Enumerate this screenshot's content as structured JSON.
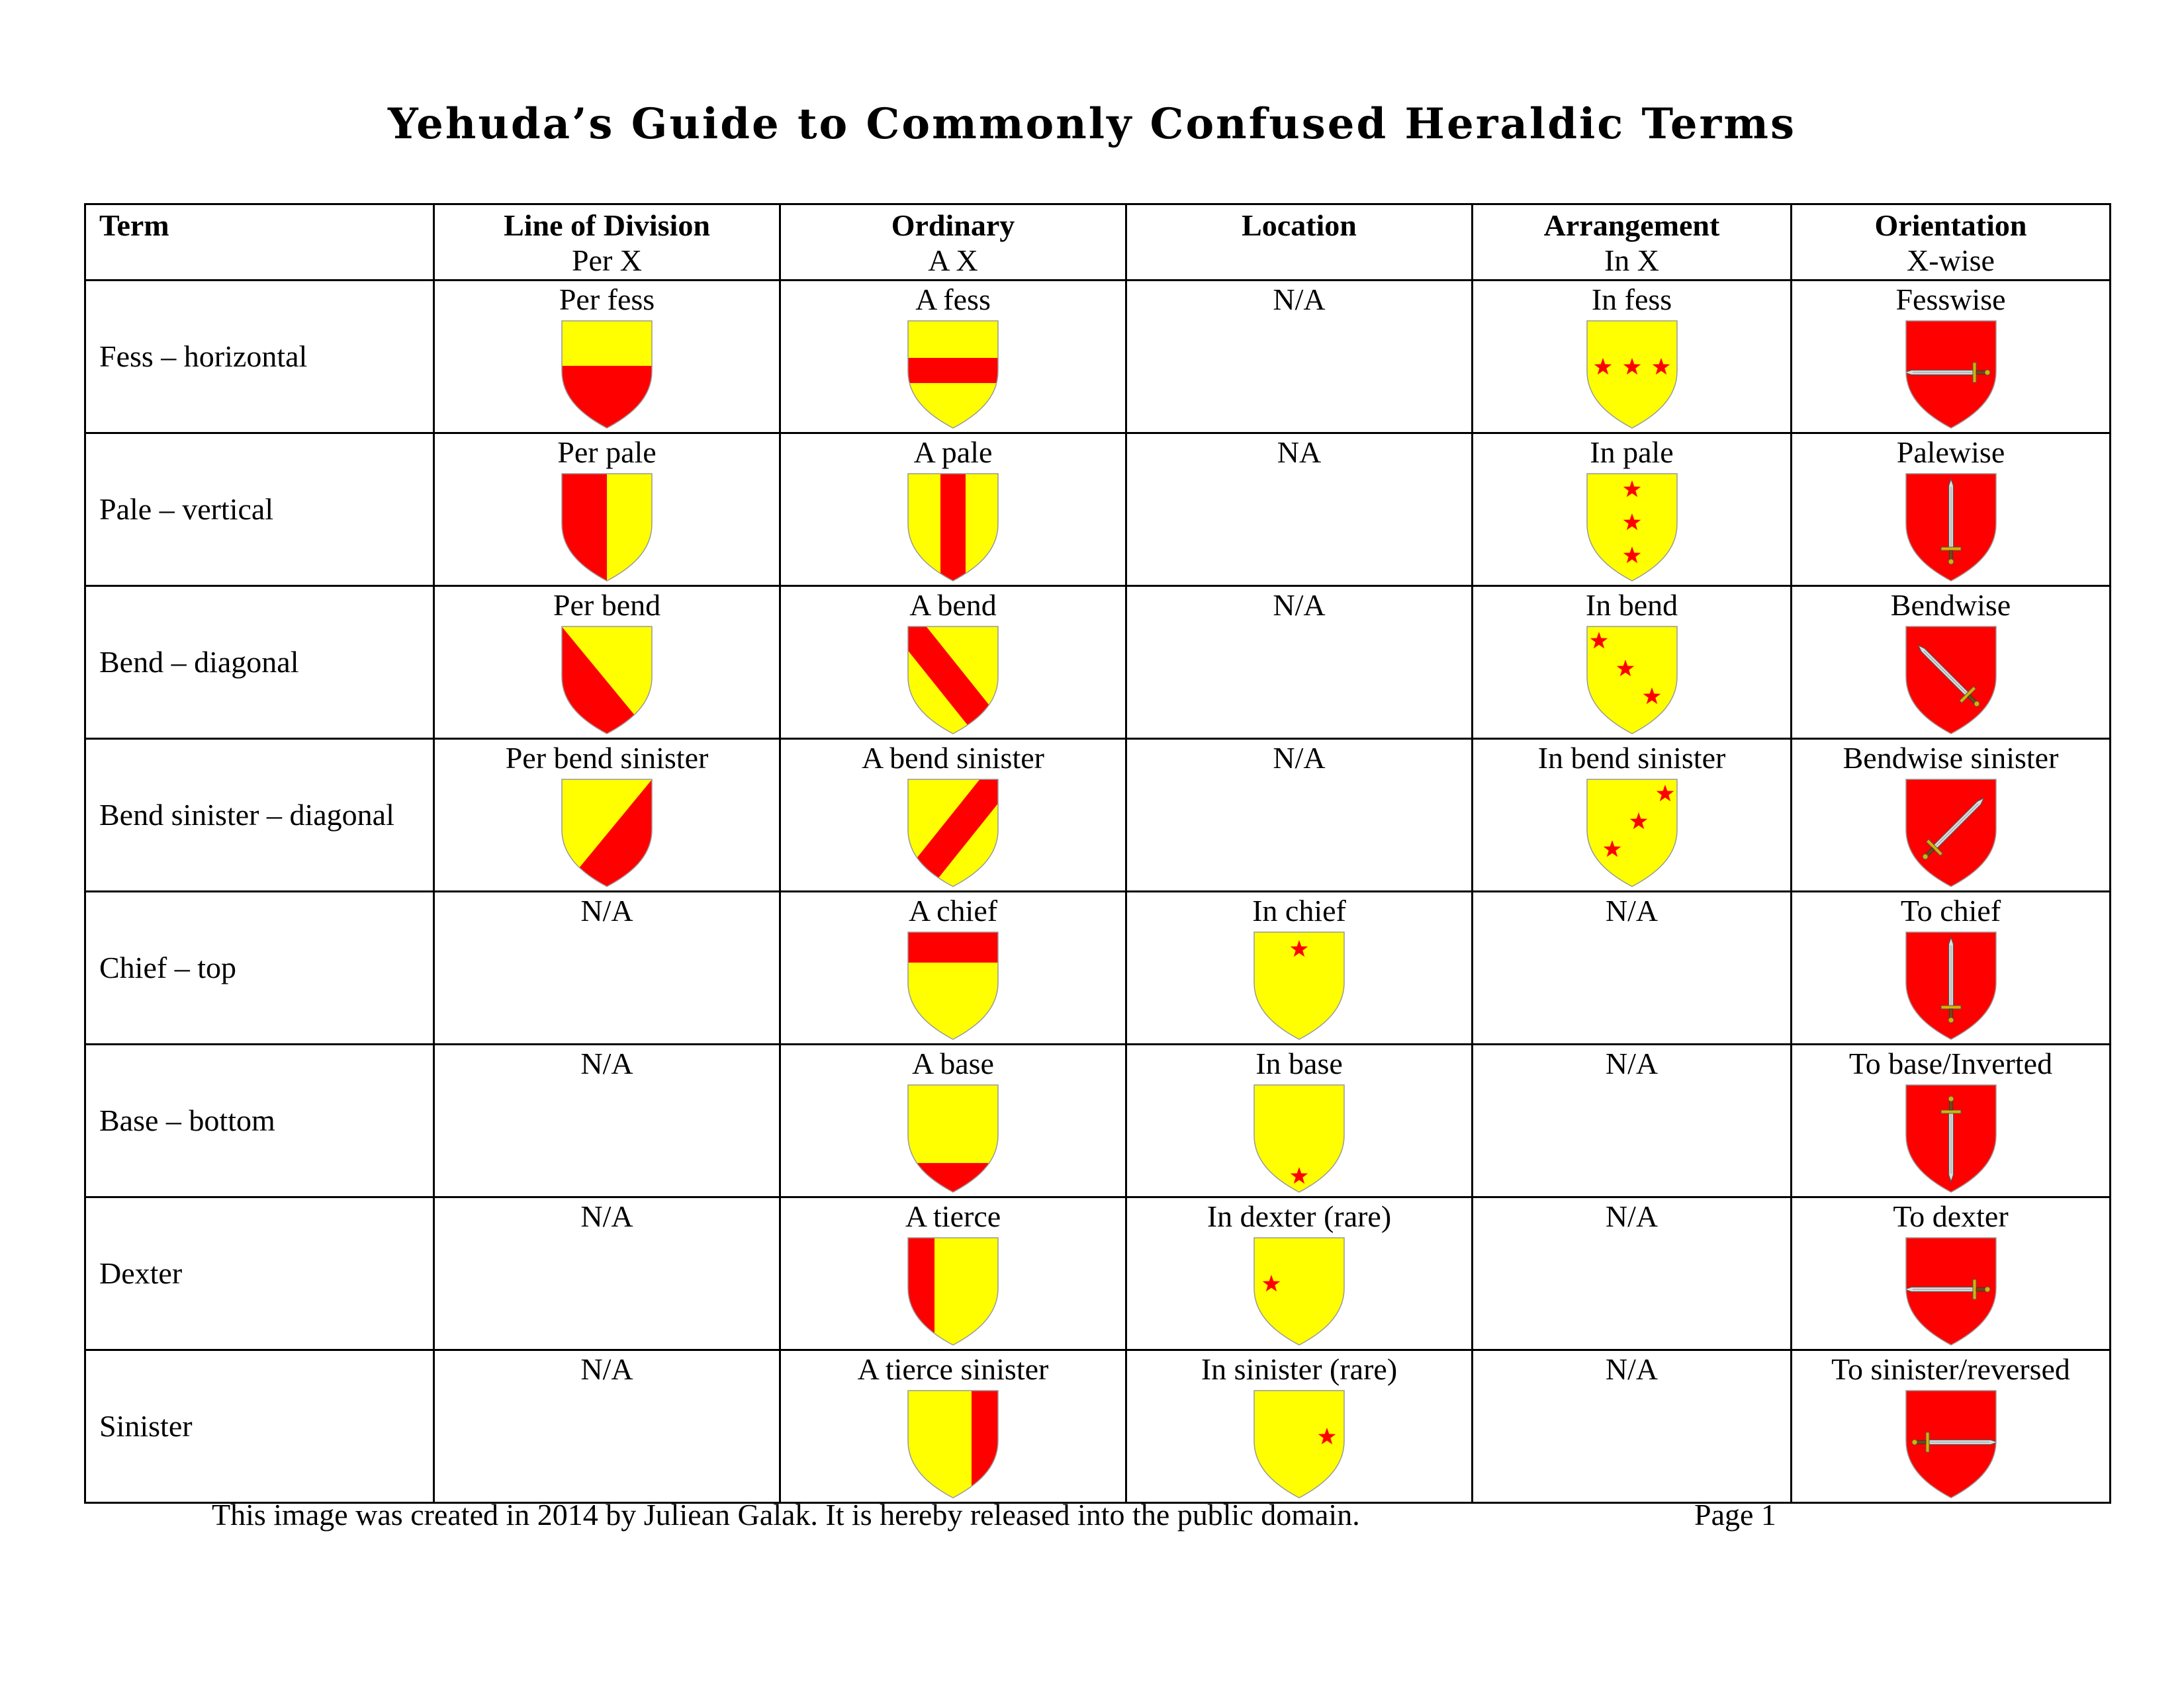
{
  "title": "Yehuda’s Guide to Commonly Confused Heraldic Terms",
  "colors": {
    "or": "#ffff00",
    "gules": "#ff0000",
    "outline": "#999999"
  },
  "headers": [
    {
      "title": "Term",
      "sub": ""
    },
    {
      "title": "Line of Division",
      "sub": "Per X"
    },
    {
      "title": "Ordinary",
      "sub": "A X"
    },
    {
      "title": "Location",
      "sub": ""
    },
    {
      "title": "Arrangement",
      "sub": "In X"
    },
    {
      "title": "Orientation",
      "sub": "X-wise"
    }
  ],
  "rows": [
    {
      "term": "Fess – horizontal",
      "cells": [
        {
          "label": "Per fess",
          "icon": "shield-per-fess-icon"
        },
        {
          "label": "A fess",
          "icon": "shield-fess-icon"
        },
        {
          "label": "N/A",
          "icon": ""
        },
        {
          "label": "In fess",
          "icon": "shield-stars-in-fess-icon"
        },
        {
          "label": "Fesswise",
          "icon": "shield-sword-fesswise-icon"
        }
      ]
    },
    {
      "term": "Pale – vertical",
      "cells": [
        {
          "label": "Per pale",
          "icon": "shield-per-pale-icon"
        },
        {
          "label": "A pale",
          "icon": "shield-pale-icon"
        },
        {
          "label": "NA",
          "icon": ""
        },
        {
          "label": "In pale",
          "icon": "shield-stars-in-pale-icon"
        },
        {
          "label": "Palewise",
          "icon": "shield-sword-palewise-icon"
        }
      ]
    },
    {
      "term": "Bend  – diagonal",
      "cells": [
        {
          "label": "Per bend",
          "icon": "shield-per-bend-icon"
        },
        {
          "label": "A bend",
          "icon": "shield-bend-icon"
        },
        {
          "label": "N/A",
          "icon": ""
        },
        {
          "label": "In bend",
          "icon": "shield-stars-in-bend-icon"
        },
        {
          "label": "Bendwise",
          "icon": "shield-sword-bendwise-icon"
        }
      ]
    },
    {
      "term": "Bend sinister  – diagonal",
      "cells": [
        {
          "label": "Per bend sinister",
          "icon": "shield-per-bend-sinister-icon"
        },
        {
          "label": "A bend sinister",
          "icon": "shield-bend-sinister-icon"
        },
        {
          "label": "N/A",
          "icon": ""
        },
        {
          "label": "In bend sinister",
          "icon": "shield-stars-in-bend-sinister-icon"
        },
        {
          "label": "Bendwise sinister",
          "icon": "shield-sword-bendwise-sinister-icon"
        }
      ]
    },
    {
      "term": "Chief – top",
      "cells": [
        {
          "label": "N/A",
          "icon": ""
        },
        {
          "label": "A chief",
          "icon": "shield-chief-icon"
        },
        {
          "label": "In chief",
          "icon": "shield-star-in-chief-icon"
        },
        {
          "label": "N/A",
          "icon": ""
        },
        {
          "label": "To chief",
          "icon": "shield-sword-to-chief-icon"
        }
      ]
    },
    {
      "term": "Base – bottom",
      "cells": [
        {
          "label": "N/A",
          "icon": ""
        },
        {
          "label": "A base",
          "icon": "shield-base-icon"
        },
        {
          "label": "In base",
          "icon": "shield-star-in-base-icon"
        },
        {
          "label": "N/A",
          "icon": ""
        },
        {
          "label": "To base/Inverted",
          "icon": "shield-sword-inverted-icon"
        }
      ]
    },
    {
      "term": "Dexter",
      "cells": [
        {
          "label": "N/A",
          "icon": ""
        },
        {
          "label": "A tierce",
          "icon": "shield-tierce-icon"
        },
        {
          "label": "In dexter    (rare)",
          "icon": "shield-star-in-dexter-icon"
        },
        {
          "label": "N/A",
          "icon": ""
        },
        {
          "label": "To dexter",
          "icon": "shield-sword-to-dexter-icon"
        }
      ]
    },
    {
      "term": "Sinister",
      "cells": [
        {
          "label": "N/A",
          "icon": ""
        },
        {
          "label": "A tierce sinister",
          "icon": "shield-tierce-sinister-icon"
        },
        {
          "label": "In sinister (rare)",
          "icon": "shield-star-in-sinister-icon"
        },
        {
          "label": "N/A",
          "icon": ""
        },
        {
          "label": "To sinister/reversed",
          "icon": "shield-sword-to-sinister-icon"
        }
      ]
    }
  ],
  "footer": {
    "text": "This image was created in 2014 by Juliean Galak.  It is hereby released into the public domain.",
    "page": "Page 1"
  }
}
